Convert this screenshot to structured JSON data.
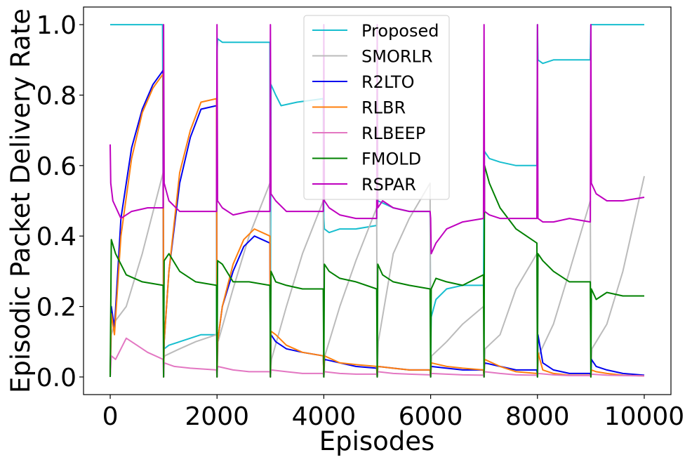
{
  "chart_data": {
    "type": "line",
    "title": "",
    "xlabel": "Episodes",
    "ylabel": "Episodic Packet Delivery Rate",
    "xlim": [
      -500,
      10500
    ],
    "ylim": [
      -0.05,
      1.05
    ],
    "xticks": [
      0,
      2000,
      4000,
      6000,
      8000,
      10000
    ],
    "xtick_labels": [
      "0",
      "2000",
      "4000",
      "6000",
      "8000",
      "10000"
    ],
    "yticks": [
      0.0,
      0.2,
      0.4,
      0.6,
      0.8,
      1.0
    ],
    "ytick_labels": [
      "0.0",
      "0.2",
      "0.4",
      "0.6",
      "0.8",
      "1.0"
    ],
    "grid": false,
    "legend_position": "top-center",
    "series": [
      {
        "name": "Proposed",
        "color": "#17becf",
        "x": [
          0,
          980,
          1000,
          1010,
          1100,
          1300,
          1500,
          1700,
          1990,
          2000,
          2010,
          2100,
          2200,
          2500,
          2990,
          3000,
          3010,
          3100,
          3200,
          3500,
          3990,
          4000,
          4010,
          4100,
          4300,
          4600,
          4990,
          5000,
          5010,
          5300,
          5600,
          5990,
          6000,
          6010,
          6100,
          6300,
          6600,
          6990,
          7000,
          7010,
          7100,
          7300,
          7600,
          7990,
          8000,
          8010,
          8100,
          8300,
          8600,
          8990,
          9000,
          9500,
          10000
        ],
        "y": [
          1.0,
          1.0,
          0.18,
          0.08,
          0.09,
          0.1,
          0.11,
          0.12,
          0.12,
          0.92,
          0.96,
          0.95,
          0.95,
          0.95,
          0.95,
          0.1,
          0.83,
          0.8,
          0.77,
          0.78,
          0.79,
          0.45,
          0.42,
          0.41,
          0.42,
          0.42,
          0.43,
          0.55,
          0.5,
          0.48,
          0.47,
          0.47,
          0.05,
          0.17,
          0.22,
          0.25,
          0.26,
          0.26,
          0.6,
          0.64,
          0.62,
          0.61,
          0.6,
          0.6,
          1.0,
          0.9,
          0.89,
          0.9,
          0.9,
          0.9,
          1.0,
          1.0,
          1.0
        ]
      },
      {
        "name": "SMORLR",
        "color": "#bbbbbb",
        "x": [
          0,
          20,
          100,
          300,
          600,
          990,
          1000,
          1020,
          1300,
          1600,
          1990,
          2000,
          2020,
          2300,
          2600,
          2990,
          3000,
          3020,
          3300,
          3600,
          3990,
          4000,
          4020,
          4300,
          4600,
          4990,
          5000,
          5020,
          5300,
          5600,
          5990,
          6000,
          6020,
          6300,
          6600,
          6990,
          7000,
          7020,
          7300,
          7600,
          7990,
          8000,
          8020,
          8300,
          8600,
          8990,
          9000,
          9020,
          9300,
          9600,
          10000
        ],
        "y": [
          0.0,
          0.12,
          0.16,
          0.2,
          0.35,
          0.58,
          0.05,
          0.06,
          0.08,
          0.1,
          0.12,
          0.0,
          0.1,
          0.25,
          0.4,
          0.55,
          0.0,
          0.05,
          0.2,
          0.35,
          0.5,
          0.0,
          0.06,
          0.2,
          0.33,
          0.48,
          0.0,
          0.1,
          0.35,
          0.45,
          0.55,
          0.0,
          0.06,
          0.1,
          0.15,
          0.2,
          0.0,
          0.08,
          0.12,
          0.25,
          0.35,
          0.0,
          0.06,
          0.15,
          0.3,
          0.5,
          0.0,
          0.08,
          0.15,
          0.3,
          0.57
        ]
      },
      {
        "name": "R2LTO",
        "color": "#0000ee",
        "x": [
          0,
          20,
          80,
          200,
          400,
          600,
          800,
          990,
          1000,
          1010,
          1100,
          1300,
          1500,
          1700,
          1990,
          2000,
          2010,
          2100,
          2300,
          2500,
          2700,
          2990,
          3000,
          3010,
          3100,
          3300,
          3600,
          3990,
          4000,
          4010,
          4300,
          4600,
          4990,
          5000,
          5010,
          5300,
          5600,
          5990,
          6000,
          6010,
          6300,
          6600,
          6990,
          7000,
          7010,
          7300,
          7600,
          7990,
          8000,
          8010,
          8100,
          8300,
          8600,
          8990,
          9000,
          9010,
          9100,
          9300,
          9600,
          10000
        ],
        "y": [
          0.0,
          0.2,
          0.14,
          0.45,
          0.65,
          0.76,
          0.83,
          0.87,
          0.0,
          0.1,
          0.3,
          0.55,
          0.68,
          0.76,
          0.77,
          0.0,
          0.1,
          0.2,
          0.3,
          0.37,
          0.4,
          0.38,
          0.0,
          0.12,
          0.1,
          0.08,
          0.07,
          0.06,
          0.0,
          0.05,
          0.04,
          0.03,
          0.025,
          0.0,
          0.03,
          0.025,
          0.02,
          0.02,
          0.0,
          0.03,
          0.025,
          0.02,
          0.02,
          0.0,
          0.04,
          0.03,
          0.02,
          0.02,
          0.0,
          0.12,
          0.04,
          0.02,
          0.01,
          0.01,
          0.0,
          0.05,
          0.03,
          0.02,
          0.01,
          0.005
        ]
      },
      {
        "name": "RLBR",
        "color": "#ff7f0e",
        "x": [
          0,
          20,
          80,
          200,
          400,
          600,
          800,
          990,
          1000,
          1010,
          1100,
          1300,
          1500,
          1700,
          1990,
          2000,
          2010,
          2100,
          2300,
          2500,
          2700,
          2990,
          3000,
          3010,
          3100,
          3300,
          3600,
          3990,
          4000,
          4010,
          4300,
          4600,
          4990,
          5000,
          5010,
          5300,
          5600,
          5990,
          6000,
          6010,
          6300,
          6600,
          6990,
          7000,
          7010,
          7300,
          7600,
          7990,
          8000,
          8010,
          8100,
          8300,
          8600,
          8990,
          9000,
          9010,
          9100,
          9300,
          9600,
          10000
        ],
        "y": [
          0.0,
          0.18,
          0.12,
          0.4,
          0.62,
          0.75,
          0.82,
          0.86,
          0.0,
          0.1,
          0.3,
          0.58,
          0.7,
          0.78,
          0.79,
          0.0,
          0.1,
          0.2,
          0.32,
          0.39,
          0.42,
          0.4,
          0.0,
          0.13,
          0.12,
          0.09,
          0.07,
          0.06,
          0.0,
          0.06,
          0.04,
          0.035,
          0.03,
          0.0,
          0.03,
          0.025,
          0.02,
          0.02,
          0.0,
          0.04,
          0.03,
          0.025,
          0.02,
          0.0,
          0.05,
          0.03,
          0.015,
          0.01,
          0.0,
          0.07,
          0.02,
          0.01,
          0.005,
          0.005,
          0.0,
          0.02,
          0.015,
          0.01,
          0.005,
          0.003
        ]
      },
      {
        "name": "RLBEEP",
        "color": "#e377c2",
        "x": [
          0,
          20,
          100,
          300,
          500,
          700,
          990,
          1000,
          1010,
          1200,
          1500,
          1990,
          2000,
          2010,
          2300,
          2600,
          2990,
          3000,
          3010,
          3300,
          3600,
          3990,
          4000,
          4010,
          4300,
          4600,
          4990,
          5000,
          5010,
          5300,
          5600,
          5990,
          6000,
          6010,
          6300,
          6600,
          6990,
          7000,
          7010,
          7300,
          7600,
          7990,
          8000,
          8010,
          8300,
          8600,
          8990,
          9000,
          9010,
          9300,
          9600,
          10000
        ],
        "y": [
          0.0,
          0.06,
          0.05,
          0.11,
          0.09,
          0.07,
          0.05,
          0.0,
          0.04,
          0.03,
          0.025,
          0.02,
          0.0,
          0.03,
          0.02,
          0.015,
          0.015,
          0.0,
          0.02,
          0.015,
          0.01,
          0.01,
          0.0,
          0.015,
          0.01,
          0.008,
          0.008,
          0.0,
          0.015,
          0.01,
          0.008,
          0.006,
          0.0,
          0.01,
          0.008,
          0.006,
          0.005,
          0.0,
          0.015,
          0.01,
          0.006,
          0.005,
          0.0,
          0.01,
          0.006,
          0.004,
          0.004,
          0.0,
          0.008,
          0.005,
          0.004,
          0.003
        ]
      },
      {
        "name": "FMOLD",
        "color": "#008000",
        "x": [
          0,
          20,
          100,
          300,
          600,
          990,
          1000,
          1010,
          1100,
          1300,
          1600,
          1990,
          2000,
          2010,
          2100,
          2300,
          2600,
          2990,
          3000,
          3010,
          3100,
          3300,
          3600,
          3990,
          4000,
          4010,
          4100,
          4300,
          4600,
          4990,
          5000,
          5010,
          5100,
          5300,
          5600,
          5990,
          6000,
          6010,
          6100,
          6300,
          6600,
          6990,
          7000,
          7010,
          7100,
          7300,
          7600,
          7990,
          8000,
          8010,
          8100,
          8300,
          8600,
          8990,
          9000,
          9010,
          9100,
          9300,
          9600,
          10000
        ],
        "y": [
          0.0,
          0.39,
          0.35,
          0.29,
          0.27,
          0.26,
          0.0,
          0.33,
          0.35,
          0.3,
          0.27,
          0.26,
          0.0,
          0.33,
          0.32,
          0.27,
          0.27,
          0.26,
          0.0,
          0.3,
          0.27,
          0.26,
          0.25,
          0.25,
          0.0,
          0.32,
          0.3,
          0.28,
          0.27,
          0.25,
          0.0,
          0.32,
          0.29,
          0.27,
          0.26,
          0.25,
          0.0,
          0.25,
          0.28,
          0.27,
          0.26,
          0.29,
          0.0,
          0.6,
          0.55,
          0.48,
          0.42,
          0.38,
          0.0,
          0.35,
          0.33,
          0.3,
          0.27,
          0.27,
          0.0,
          0.25,
          0.22,
          0.24,
          0.23,
          0.23
        ]
      },
      {
        "name": "RSPAR",
        "color": "#bf00bf",
        "x": [
          0,
          10,
          50,
          200,
          400,
          700,
          990,
          1000,
          1010,
          1100,
          1300,
          1600,
          1990,
          2000,
          2010,
          2100,
          2300,
          2600,
          2990,
          3000,
          3010,
          3100,
          3300,
          3600,
          3990,
          4000,
          4010,
          4100,
          4300,
          4600,
          4990,
          5000,
          5010,
          5100,
          5300,
          5600,
          5990,
          6000,
          6010,
          6100,
          6300,
          6600,
          6990,
          7000,
          7010,
          7100,
          7300,
          7600,
          7990,
          8000,
          8010,
          8100,
          8300,
          8600,
          8990,
          9000,
          9010,
          9100,
          9300,
          9600,
          10000
        ],
        "y": [
          0.66,
          0.55,
          0.5,
          0.45,
          0.47,
          0.48,
          0.48,
          1.0,
          0.55,
          0.5,
          0.47,
          0.47,
          0.47,
          1.0,
          0.5,
          0.48,
          0.46,
          0.47,
          0.47,
          1.0,
          0.52,
          0.5,
          0.47,
          0.47,
          0.47,
          1.0,
          0.5,
          0.48,
          0.46,
          0.45,
          0.45,
          1.0,
          0.48,
          0.5,
          0.48,
          0.47,
          0.47,
          0.45,
          0.35,
          0.38,
          0.42,
          0.44,
          0.45,
          1.0,
          0.47,
          0.46,
          0.45,
          0.45,
          0.45,
          1.0,
          0.45,
          0.44,
          0.44,
          0.45,
          0.44,
          1.0,
          0.55,
          0.52,
          0.5,
          0.5,
          0.51
        ]
      }
    ]
  }
}
